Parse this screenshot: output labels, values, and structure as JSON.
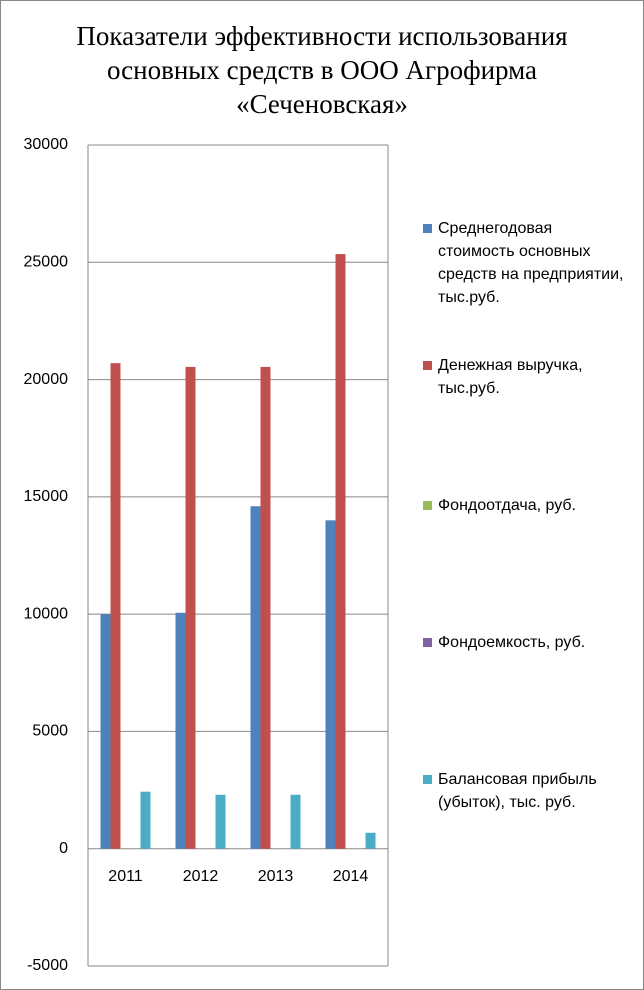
{
  "chart_data": {
    "type": "bar",
    "title": "Показатели эффективности использования основных средств в ООО Агрофирма «Сеченовская»",
    "categories": [
      "2011",
      "2012",
      "2013",
      "2014"
    ],
    "series": [
      {
        "name": "Среднегодовая стоимость основных средств на предприятии, тыс.руб.",
        "color": "#4f81bd",
        "values": [
          10000,
          10060,
          14600,
          14000
        ]
      },
      {
        "name": "Денежная выручка, тыс.руб.",
        "color": "#c0504d",
        "values": [
          20700,
          20540,
          20540,
          25350
        ]
      },
      {
        "name": "Фондоотдача, руб.",
        "color": "#9bbb59",
        "values": [
          2,
          2,
          1.4,
          1.8
        ]
      },
      {
        "name": "Фондоемкость, руб.",
        "color": "#8064a2",
        "values": [
          0.5,
          0.5,
          0.7,
          0.55
        ]
      },
      {
        "name": "Балансовая прибыль (убыток), тыс. руб.",
        "color": "#4bacc6",
        "values": [
          2430,
          2300,
          2300,
          680
        ]
      }
    ],
    "ylim": [
      -5000,
      30000
    ],
    "yticks": [
      -5000,
      0,
      5000,
      10000,
      15000,
      20000,
      25000,
      30000
    ],
    "grid": true,
    "legend": "right"
  }
}
